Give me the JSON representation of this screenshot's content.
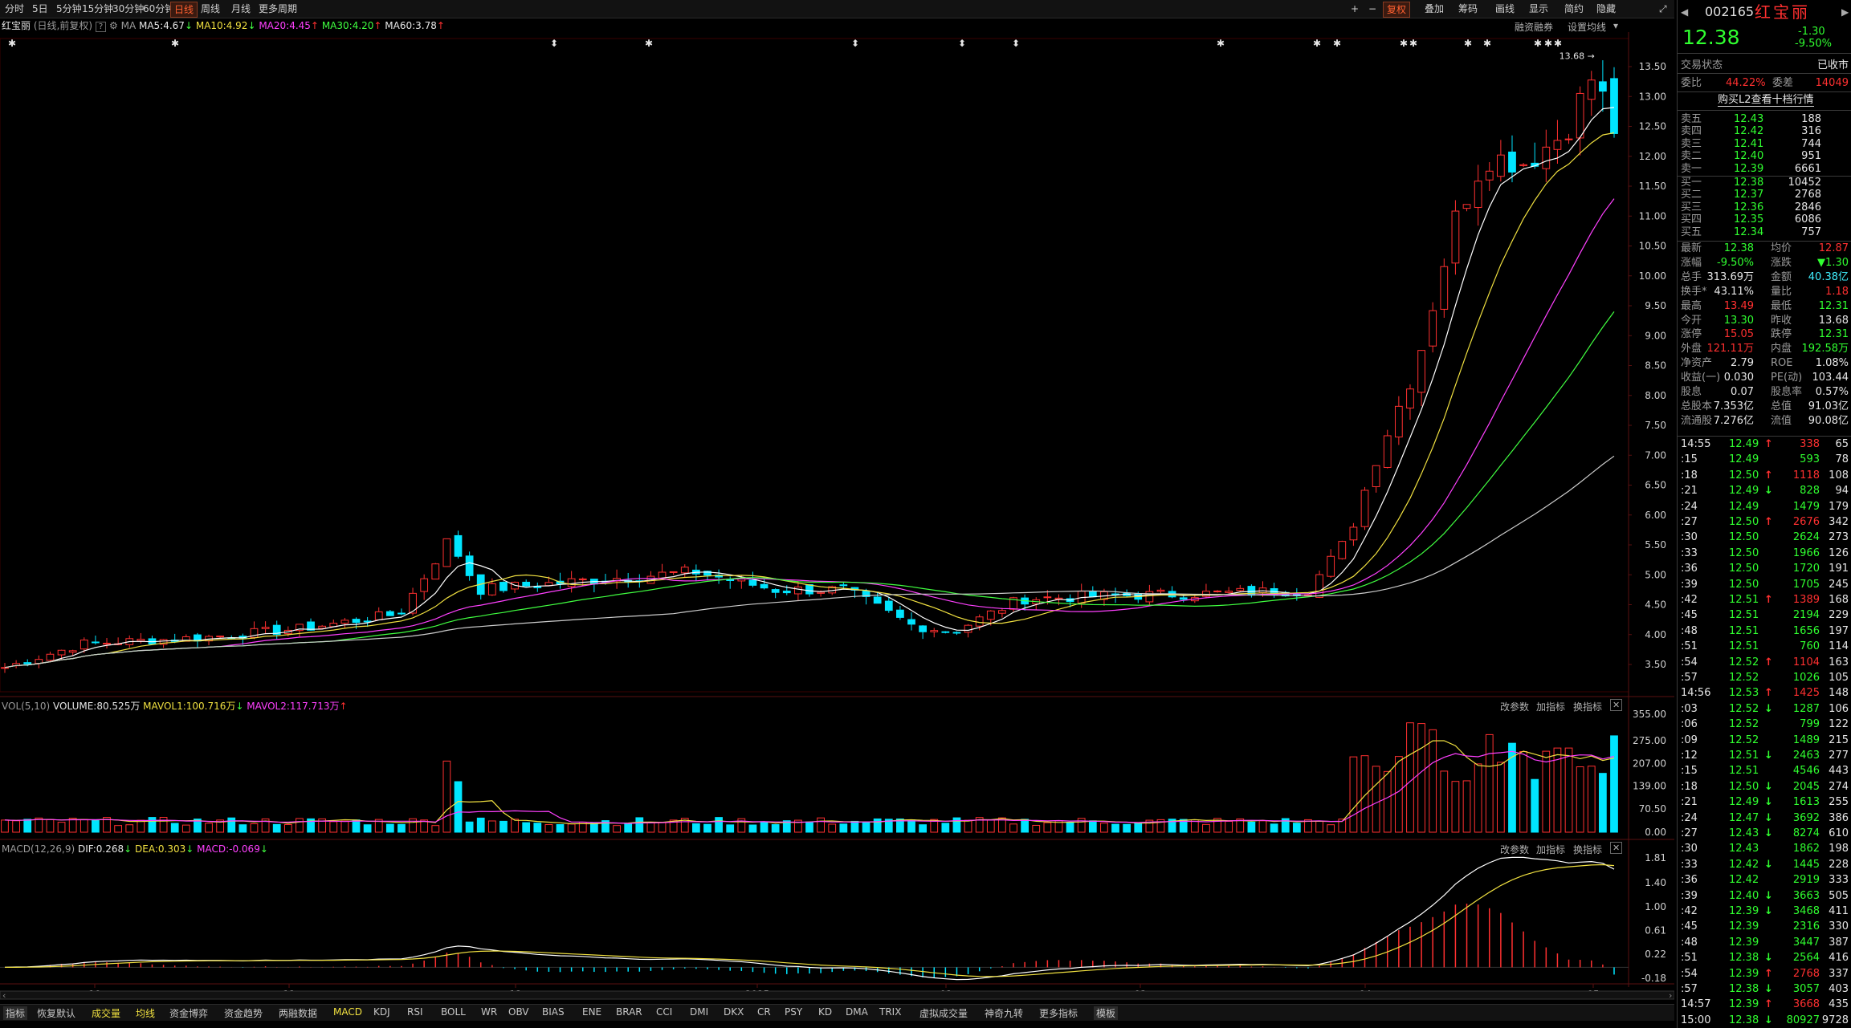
{
  "toolbar": {
    "periods": [
      "分时",
      "5日",
      "5分钟",
      "15分钟",
      "30分钟",
      "60分钟",
      "日线",
      "周线",
      "月线",
      "更多周期"
    ],
    "selected": "日线",
    "right": [
      "复权",
      "叠加",
      "筹码",
      "画线",
      "显示",
      "简约",
      "隐藏"
    ]
  },
  "main_header": {
    "name": "红宝丽",
    "mode": "(日线,前复权)",
    "ma_label": "MA",
    "ma5": "MA5:4.67",
    "ma10": "MA10:4.92",
    "ma20": "MA20:4.45",
    "ma30": "MA30:4.20",
    "ma60": "MA60:3.78",
    "links": [
      "融资融券",
      "设置均线"
    ]
  },
  "price_axis": [
    "13.50",
    "13.00",
    "12.50",
    "12.00",
    "11.50",
    "11.00",
    "10.50",
    "10.00",
    "9.50",
    "9.00",
    "8.50",
    "8.00",
    "7.50",
    "7.00",
    "6.50",
    "6.00",
    "5.50",
    "5.00",
    "4.50",
    "4.00",
    "3.50"
  ],
  "high_marker": "13.68",
  "vol_header": {
    "label": "VOL(5,10)",
    "volume": "VOLUME:80.525万",
    "mavol1": "MAVOL1:100.716万",
    "mavol2": "MAVOL2:117.713万",
    "buttons": [
      "改参数",
      "加指标",
      "换指标"
    ]
  },
  "vol_axis": [
    "355.00",
    "275.00",
    "207.00",
    "139.00",
    "70.50",
    "0.00"
  ],
  "macd_header": {
    "label": "MACD(12,26,9)",
    "dif": "DIF:0.268",
    "dea": "DEA:0.303",
    "macd": "MACD:-0.069",
    "buttons": [
      "改参数",
      "加指标",
      "换指标"
    ]
  },
  "macd_axis": [
    "1.81",
    "1.40",
    "1.00",
    "0.61",
    "0.22",
    "-0.18"
  ],
  "date_axis": [
    "10",
    "11",
    "12",
    "2025",
    "02",
    "03",
    "04",
    "05"
  ],
  "bottom_tabs": [
    "指标",
    "恢复默认",
    "成交量",
    "均线",
    "资金博弈",
    "资金趋势",
    "两融数据",
    "MACD",
    "KDJ",
    "RSI",
    "BOLL",
    "WR",
    "OBV",
    "BIAS",
    "ENE",
    "BRAR",
    "CCI",
    "DMI",
    "DKX",
    "CR",
    "PSY",
    "KD",
    "DMA",
    "TRIX",
    "虚拟成交量",
    "神奇九转",
    "更多指标",
    "模板"
  ],
  "quote": {
    "code": "002165",
    "name": "红宝丽",
    "price": "12.38",
    "change": "-1.30",
    "change_pct": "-9.50%",
    "status_label": "交易状态",
    "status": "已收市",
    "ratio_label": "委比",
    "ratio": "44.22%",
    "diff_label": "委差",
    "diff": "14049",
    "l2_link": "购买L2查看十档行情",
    "asks": [
      {
        "label": "卖五",
        "price": "12.43",
        "vol": "188"
      },
      {
        "label": "卖四",
        "price": "12.42",
        "vol": "316"
      },
      {
        "label": "卖三",
        "price": "12.41",
        "vol": "744"
      },
      {
        "label": "卖二",
        "price": "12.40",
        "vol": "951"
      },
      {
        "label": "卖一",
        "price": "12.39",
        "vol": "6661"
      }
    ],
    "bids": [
      {
        "label": "买一",
        "price": "12.38",
        "vol": "10452"
      },
      {
        "label": "买二",
        "price": "12.37",
        "vol": "2768"
      },
      {
        "label": "买三",
        "price": "12.36",
        "vol": "2846"
      },
      {
        "label": "买四",
        "price": "12.35",
        "vol": "6086"
      },
      {
        "label": "买五",
        "price": "12.34",
        "vol": "757"
      }
    ],
    "stats": [
      {
        "l": "最新",
        "v": "12.38",
        "l2": "均价",
        "v2": "12.87",
        "c": "green",
        "c2": "red"
      },
      {
        "l": "涨幅",
        "v": "-9.50%",
        "l2": "涨跌",
        "v2": "▼1.30",
        "c": "green",
        "c2": "green"
      },
      {
        "l": "总手",
        "v": "313.69万",
        "l2": "金额",
        "v2": "40.38亿",
        "c": "white",
        "c2": "cyan"
      },
      {
        "l": "换手*",
        "v": "43.11%",
        "l2": "量比",
        "v2": "1.18",
        "c": "white",
        "c2": "red"
      },
      {
        "l": "最高",
        "v": "13.49",
        "l2": "最低",
        "v2": "12.31",
        "c": "red",
        "c2": "green"
      },
      {
        "l": "今开",
        "v": "13.30",
        "l2": "昨收",
        "v2": "13.68",
        "c": "green",
        "c2": "white"
      },
      {
        "l": "涨停",
        "v": "15.05",
        "l2": "跌停",
        "v2": "12.31",
        "c": "red",
        "c2": "green"
      },
      {
        "l": "外盘",
        "v": "121.11万",
        "l2": "内盘",
        "v2": "192.58万",
        "c": "red",
        "c2": "green"
      },
      {
        "l": "净资产",
        "v": "2.79",
        "l2": "ROE",
        "v2": "1.08%",
        "c": "white",
        "c2": "white"
      },
      {
        "l": "收益(一)",
        "v": "0.030",
        "l2": "PE(动)",
        "v2": "103.44",
        "c": "white",
        "c2": "white"
      },
      {
        "l": "股息",
        "v": "0.07",
        "l2": "股息率",
        "v2": "0.57%",
        "c": "white",
        "c2": "white"
      },
      {
        "l": "总股本",
        "v": "7.353亿",
        "l2": "总值",
        "v2": "91.03亿",
        "c": "white",
        "c2": "white"
      },
      {
        "l": "流通股",
        "v": "7.276亿",
        "l2": "流值",
        "v2": "90.08亿",
        "c": "white",
        "c2": "white"
      }
    ],
    "ticks": [
      {
        "t": "14:55",
        "p": "12.49",
        "d": "up",
        "v": "338",
        "n": "65"
      },
      {
        "t": ":15",
        "p": "12.49",
        "d": "",
        "v": "593",
        "n": "78"
      },
      {
        "t": ":18",
        "p": "12.50",
        "d": "up",
        "v": "1118",
        "n": "108"
      },
      {
        "t": ":21",
        "p": "12.49",
        "d": "down",
        "v": "828",
        "n": "94"
      },
      {
        "t": ":24",
        "p": "12.49",
        "d": "",
        "v": "1479",
        "n": "179"
      },
      {
        "t": ":27",
        "p": "12.50",
        "d": "up",
        "v": "2676",
        "n": "342"
      },
      {
        "t": ":30",
        "p": "12.50",
        "d": "",
        "v": "2624",
        "n": "273"
      },
      {
        "t": ":33",
        "p": "12.50",
        "d": "",
        "v": "1966",
        "n": "126"
      },
      {
        "t": ":36",
        "p": "12.50",
        "d": "",
        "v": "1720",
        "n": "191"
      },
      {
        "t": ":39",
        "p": "12.50",
        "d": "",
        "v": "1705",
        "n": "245"
      },
      {
        "t": ":42",
        "p": "12.51",
        "d": "up",
        "v": "1389",
        "n": "168"
      },
      {
        "t": ":45",
        "p": "12.51",
        "d": "",
        "v": "2194",
        "n": "229"
      },
      {
        "t": ":48",
        "p": "12.51",
        "d": "",
        "v": "1656",
        "n": "197"
      },
      {
        "t": ":51",
        "p": "12.51",
        "d": "",
        "v": "760",
        "n": "114"
      },
      {
        "t": ":54",
        "p": "12.52",
        "d": "up",
        "v": "1104",
        "n": "163"
      },
      {
        "t": ":57",
        "p": "12.52",
        "d": "",
        "v": "1026",
        "n": "105"
      },
      {
        "t": "14:56",
        "p": "12.53",
        "d": "up",
        "v": "1425",
        "n": "148"
      },
      {
        "t": ":03",
        "p": "12.52",
        "d": "down",
        "v": "1287",
        "n": "106"
      },
      {
        "t": ":06",
        "p": "12.52",
        "d": "",
        "v": "799",
        "n": "122"
      },
      {
        "t": ":09",
        "p": "12.52",
        "d": "",
        "v": "1489",
        "n": "215"
      },
      {
        "t": ":12",
        "p": "12.51",
        "d": "down",
        "v": "2463",
        "n": "277"
      },
      {
        "t": ":15",
        "p": "12.51",
        "d": "",
        "v": "4546",
        "n": "443"
      },
      {
        "t": ":18",
        "p": "12.50",
        "d": "down",
        "v": "2045",
        "n": "274"
      },
      {
        "t": ":21",
        "p": "12.49",
        "d": "down",
        "v": "1613",
        "n": "255"
      },
      {
        "t": ":24",
        "p": "12.47",
        "d": "down",
        "v": "3692",
        "n": "386"
      },
      {
        "t": ":27",
        "p": "12.43",
        "d": "down",
        "v": "8274",
        "n": "610"
      },
      {
        "t": ":30",
        "p": "12.43",
        "d": "",
        "v": "1862",
        "n": "198"
      },
      {
        "t": ":33",
        "p": "12.42",
        "d": "down",
        "v": "1445",
        "n": "228"
      },
      {
        "t": ":36",
        "p": "12.42",
        "d": "",
        "v": "2919",
        "n": "333"
      },
      {
        "t": ":39",
        "p": "12.40",
        "d": "down",
        "v": "3663",
        "n": "505"
      },
      {
        "t": ":42",
        "p": "12.39",
        "d": "down",
        "v": "3468",
        "n": "411"
      },
      {
        "t": ":45",
        "p": "12.39",
        "d": "",
        "v": "2316",
        "n": "330"
      },
      {
        "t": ":48",
        "p": "12.39",
        "d": "",
        "v": "3447",
        "n": "387"
      },
      {
        "t": ":51",
        "p": "12.38",
        "d": "down",
        "v": "2564",
        "n": "416"
      },
      {
        "t": ":54",
        "p": "12.39",
        "d": "up",
        "v": "2768",
        "n": "337"
      },
      {
        "t": ":57",
        "p": "12.38",
        "d": "down",
        "v": "3057",
        "n": "403"
      },
      {
        "t": "14:57",
        "p": "12.39",
        "d": "up",
        "v": "3668",
        "n": "435"
      },
      {
        "t": "15:00",
        "p": "12.38",
        "d": "down",
        "v": "80927",
        "n": "9728"
      }
    ]
  },
  "colors": {
    "up": "#ff3030",
    "down": "#00e5ff",
    "ma5": "#ffffff",
    "ma10": "#f0e040",
    "ma20": "#ff40ff",
    "ma30": "#40ff40",
    "ma60": "#cccccc"
  }
}
